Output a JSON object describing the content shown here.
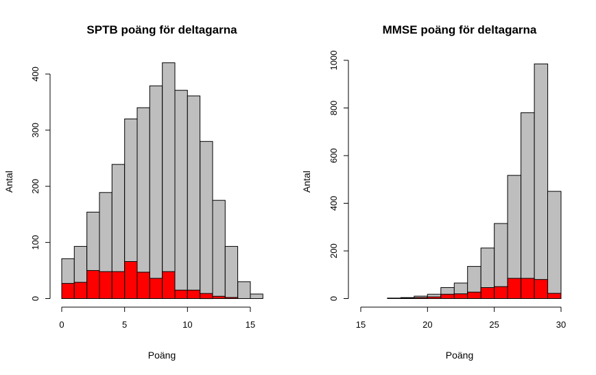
{
  "chart_data": [
    {
      "type": "bar",
      "title": "SPTB poäng för deltagarna",
      "xlabel": "Poäng",
      "ylabel": "Antal",
      "xlim": [
        0,
        16
      ],
      "ylim": [
        0,
        420
      ],
      "xticks": [
        "0",
        "5",
        "10",
        "15"
      ],
      "yticks": [
        "0",
        "100",
        "200",
        "300",
        "400"
      ],
      "bin_edges": [
        0,
        1,
        2,
        3,
        4,
        5,
        6,
        7,
        8,
        9,
        10,
        11,
        12,
        13,
        14,
        15,
        16
      ],
      "series": [
        {
          "color": "#bebebe",
          "values": [
            71,
            93,
            154,
            189,
            239,
            320,
            340,
            379,
            420,
            371,
            361,
            280,
            175,
            93,
            30,
            8
          ]
        },
        {
          "color": "#ff0000",
          "values": [
            27,
            29,
            50,
            48,
            48,
            66,
            47,
            36,
            48,
            15,
            15,
            9,
            4,
            2,
            0,
            0
          ]
        }
      ]
    },
    {
      "type": "bar",
      "title": "MMSE poäng för deltagarna",
      "xlabel": "Poäng",
      "ylabel": "Antal",
      "xlim": [
        15,
        30
      ],
      "ylim": [
        0,
        1000
      ],
      "xticks": [
        "15",
        "20",
        "25",
        "30"
      ],
      "yticks": [
        "0",
        "200",
        "400",
        "600",
        "800",
        "1000"
      ],
      "bin_edges": [
        17,
        18,
        19,
        20,
        21,
        22,
        23,
        24,
        25,
        26,
        27,
        28,
        29,
        30
      ],
      "series": [
        {
          "color": "#bebebe",
          "values": [
            2,
            4,
            10,
            18,
            46,
            65,
            135,
            212,
            315,
            517,
            780,
            985,
            450
          ]
        },
        {
          "color": "#ff0000",
          "values": [
            0,
            2,
            4,
            7,
            18,
            20,
            27,
            46,
            50,
            85,
            85,
            80,
            22
          ]
        }
      ]
    }
  ]
}
